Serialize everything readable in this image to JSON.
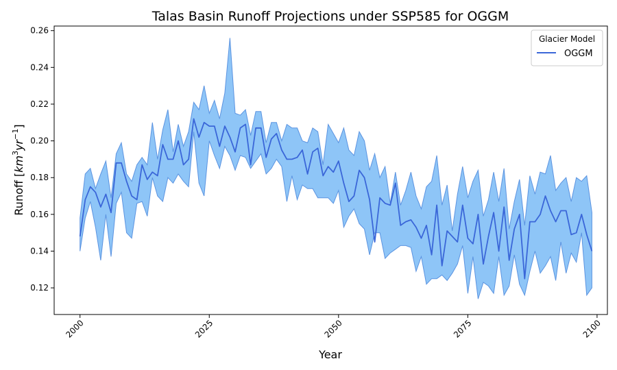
{
  "chart_data": {
    "type": "line",
    "title": "Talas Basin Runoff Projections under SSP585 for OGGM",
    "xlabel": "Year",
    "ylabel_prefix": "Runoff [",
    "ylabel_unit_base": "km",
    "ylabel_unit_exp1": "3",
    "ylabel_unit_mid": "yr",
    "ylabel_unit_exp2": "−1",
    "ylabel_suffix": "]",
    "xlim": [
      1995,
      2102
    ],
    "ylim": [
      0.1055,
      0.2625
    ],
    "xticks": [
      2000,
      2025,
      2050,
      2075,
      2100
    ],
    "yticks": [
      0.12,
      0.14,
      0.16,
      0.18,
      0.2,
      0.22,
      0.24,
      0.26
    ],
    "legend": {
      "title": "Glacier Model",
      "position": "top-right"
    },
    "colors": {
      "line": "#3a66d8",
      "band": "#8ec5f7",
      "band_edge": "#5b93e0"
    },
    "series": [
      {
        "name": "OGGM",
        "x": [
          2000,
          2001,
          2002,
          2003,
          2004,
          2005,
          2006,
          2007,
          2008,
          2009,
          2010,
          2011,
          2012,
          2013,
          2014,
          2015,
          2016,
          2017,
          2018,
          2019,
          2020,
          2021,
          2022,
          2023,
          2024,
          2025,
          2026,
          2027,
          2028,
          2029,
          2030,
          2031,
          2032,
          2033,
          2034,
          2035,
          2036,
          2037,
          2038,
          2039,
          2040,
          2041,
          2042,
          2043,
          2044,
          2045,
          2046,
          2047,
          2048,
          2049,
          2050,
          2051,
          2052,
          2053,
          2054,
          2055,
          2056,
          2057,
          2058,
          2059,
          2060,
          2061,
          2062,
          2063,
          2064,
          2065,
          2066,
          2067,
          2068,
          2069,
          2070,
          2071,
          2072,
          2073,
          2074,
          2075,
          2076,
          2077,
          2078,
          2079,
          2080,
          2081,
          2082,
          2083,
          2084,
          2085,
          2086,
          2087,
          2088,
          2089,
          2090,
          2091,
          2092,
          2093,
          2094,
          2095,
          2096,
          2097,
          2098,
          2099
        ],
        "values": [
          0.148,
          0.168,
          0.175,
          0.172,
          0.164,
          0.171,
          0.161,
          0.188,
          0.188,
          0.178,
          0.17,
          0.168,
          0.187,
          0.179,
          0.183,
          0.181,
          0.198,
          0.19,
          0.19,
          0.2,
          0.187,
          0.19,
          0.212,
          0.202,
          0.21,
          0.208,
          0.208,
          0.197,
          0.208,
          0.202,
          0.194,
          0.207,
          0.209,
          0.187,
          0.207,
          0.207,
          0.191,
          0.201,
          0.204,
          0.195,
          0.19,
          0.19,
          0.191,
          0.195,
          0.182,
          0.194,
          0.196,
          0.181,
          0.186,
          0.183,
          0.189,
          0.177,
          0.167,
          0.17,
          0.184,
          0.18,
          0.168,
          0.145,
          0.169,
          0.166,
          0.165,
          0.177,
          0.154,
          0.156,
          0.157,
          0.153,
          0.147,
          0.154,
          0.138,
          0.165,
          0.132,
          0.151,
          0.148,
          0.145,
          0.165,
          0.147,
          0.144,
          0.16,
          0.133,
          0.148,
          0.161,
          0.14,
          0.164,
          0.135,
          0.152,
          0.16,
          0.125,
          0.156,
          0.156,
          0.16,
          0.17,
          0.162,
          0.156,
          0.162,
          0.162,
          0.149,
          0.15,
          0.16,
          0.149,
          0.14
        ],
        "upper": [
          0.158,
          0.182,
          0.185,
          0.174,
          0.182,
          0.189,
          0.169,
          0.193,
          0.199,
          0.182,
          0.178,
          0.187,
          0.191,
          0.187,
          0.21,
          0.19,
          0.206,
          0.217,
          0.194,
          0.209,
          0.197,
          0.205,
          0.221,
          0.217,
          0.23,
          0.215,
          0.222,
          0.212,
          0.226,
          0.256,
          0.215,
          0.214,
          0.217,
          0.203,
          0.216,
          0.216,
          0.199,
          0.21,
          0.21,
          0.2,
          0.209,
          0.207,
          0.207,
          0.2,
          0.199,
          0.207,
          0.205,
          0.187,
          0.209,
          0.204,
          0.199,
          0.207,
          0.195,
          0.192,
          0.205,
          0.2,
          0.184,
          0.193,
          0.18,
          0.186,
          0.166,
          0.183,
          0.165,
          0.173,
          0.183,
          0.17,
          0.163,
          0.175,
          0.178,
          0.192,
          0.165,
          0.176,
          0.151,
          0.171,
          0.186,
          0.169,
          0.178,
          0.184,
          0.159,
          0.168,
          0.183,
          0.167,
          0.185,
          0.152,
          0.167,
          0.179,
          0.154,
          0.181,
          0.171,
          0.183,
          0.182,
          0.192,
          0.173,
          0.177,
          0.18,
          0.167,
          0.18,
          0.178,
          0.181,
          0.161
        ],
        "lower": [
          0.14,
          0.158,
          0.167,
          0.153,
          0.135,
          0.16,
          0.137,
          0.166,
          0.172,
          0.15,
          0.147,
          0.166,
          0.167,
          0.159,
          0.18,
          0.17,
          0.167,
          0.18,
          0.177,
          0.182,
          0.178,
          0.175,
          0.205,
          0.177,
          0.17,
          0.2,
          0.192,
          0.185,
          0.197,
          0.192,
          0.184,
          0.192,
          0.191,
          0.185,
          0.189,
          0.193,
          0.182,
          0.185,
          0.19,
          0.186,
          0.167,
          0.181,
          0.168,
          0.176,
          0.174,
          0.174,
          0.169,
          0.169,
          0.169,
          0.166,
          0.173,
          0.153,
          0.159,
          0.163,
          0.155,
          0.152,
          0.138,
          0.15,
          0.15,
          0.136,
          0.139,
          0.141,
          0.143,
          0.143,
          0.142,
          0.129,
          0.137,
          0.122,
          0.125,
          0.125,
          0.127,
          0.124,
          0.128,
          0.133,
          0.143,
          0.117,
          0.137,
          0.114,
          0.123,
          0.121,
          0.117,
          0.137,
          0.116,
          0.121,
          0.138,
          0.122,
          0.116,
          0.129,
          0.14,
          0.128,
          0.132,
          0.137,
          0.124,
          0.145,
          0.128,
          0.139,
          0.134,
          0.15,
          0.116,
          0.12
        ]
      }
    ]
  }
}
